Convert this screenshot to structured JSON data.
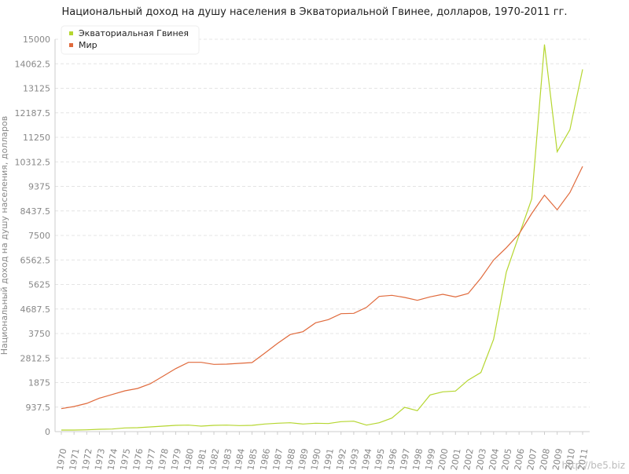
{
  "chart_data": {
    "type": "line",
    "title": "Национальный доход на душу населения в Экваториальной Гвинее, долларов, 1970-2011 гг.",
    "y_label": "Национальный доход на душу населения, долларов",
    "watermark": "http://be5.biz",
    "categories": [
      "1970",
      "1971",
      "1972",
      "1973",
      "1974",
      "1975",
      "1976",
      "1977",
      "1978",
      "1979",
      "1980",
      "1981",
      "1982",
      "1983",
      "1984",
      "1985",
      "1986",
      "1987",
      "1988",
      "1989",
      "1990",
      "1991",
      "1992",
      "1993",
      "1994",
      "1995",
      "1996",
      "1997",
      "1998",
      "1999",
      "2000",
      "2001",
      "2002",
      "2003",
      "2004",
      "2005",
      "2006",
      "2007",
      "2008",
      "2009",
      "2010",
      "2011"
    ],
    "series": [
      {
        "name": "Экваториальная Гвинея",
        "color": "#b5d62f",
        "values": [
          60,
          60,
          70,
          90,
          100,
          140,
          150,
          180,
          210,
          240,
          250,
          210,
          240,
          250,
          230,
          240,
          290,
          320,
          340,
          290,
          320,
          310,
          380,
          400,
          250,
          340,
          520,
          930,
          800,
          1400,
          1520,
          1550,
          1970,
          2260,
          3530,
          6100,
          7510,
          8900,
          14800,
          10700,
          11540,
          13850
        ]
      },
      {
        "name": "Мир",
        "color": "#e06a3c",
        "values": [
          880,
          960,
          1080,
          1280,
          1420,
          1560,
          1650,
          1830,
          2120,
          2410,
          2650,
          2650,
          2570,
          2580,
          2610,
          2640,
          3000,
          3370,
          3710,
          3820,
          4160,
          4280,
          4510,
          4520,
          4750,
          5170,
          5210,
          5130,
          5020,
          5150,
          5250,
          5150,
          5280,
          5870,
          6560,
          7030,
          7560,
          8340,
          9040,
          8480,
          9140,
          10140
        ]
      }
    ],
    "ylim": [
      0,
      15000
    ],
    "yticks": [
      0,
      937.5,
      1875,
      2812.5,
      3750,
      4687.5,
      5625,
      6562.5,
      7500,
      8437.5,
      9375,
      10312.5,
      11250,
      12187.5,
      13125,
      14062.5,
      15000
    ],
    "grid": true,
    "legend": "top-left"
  }
}
